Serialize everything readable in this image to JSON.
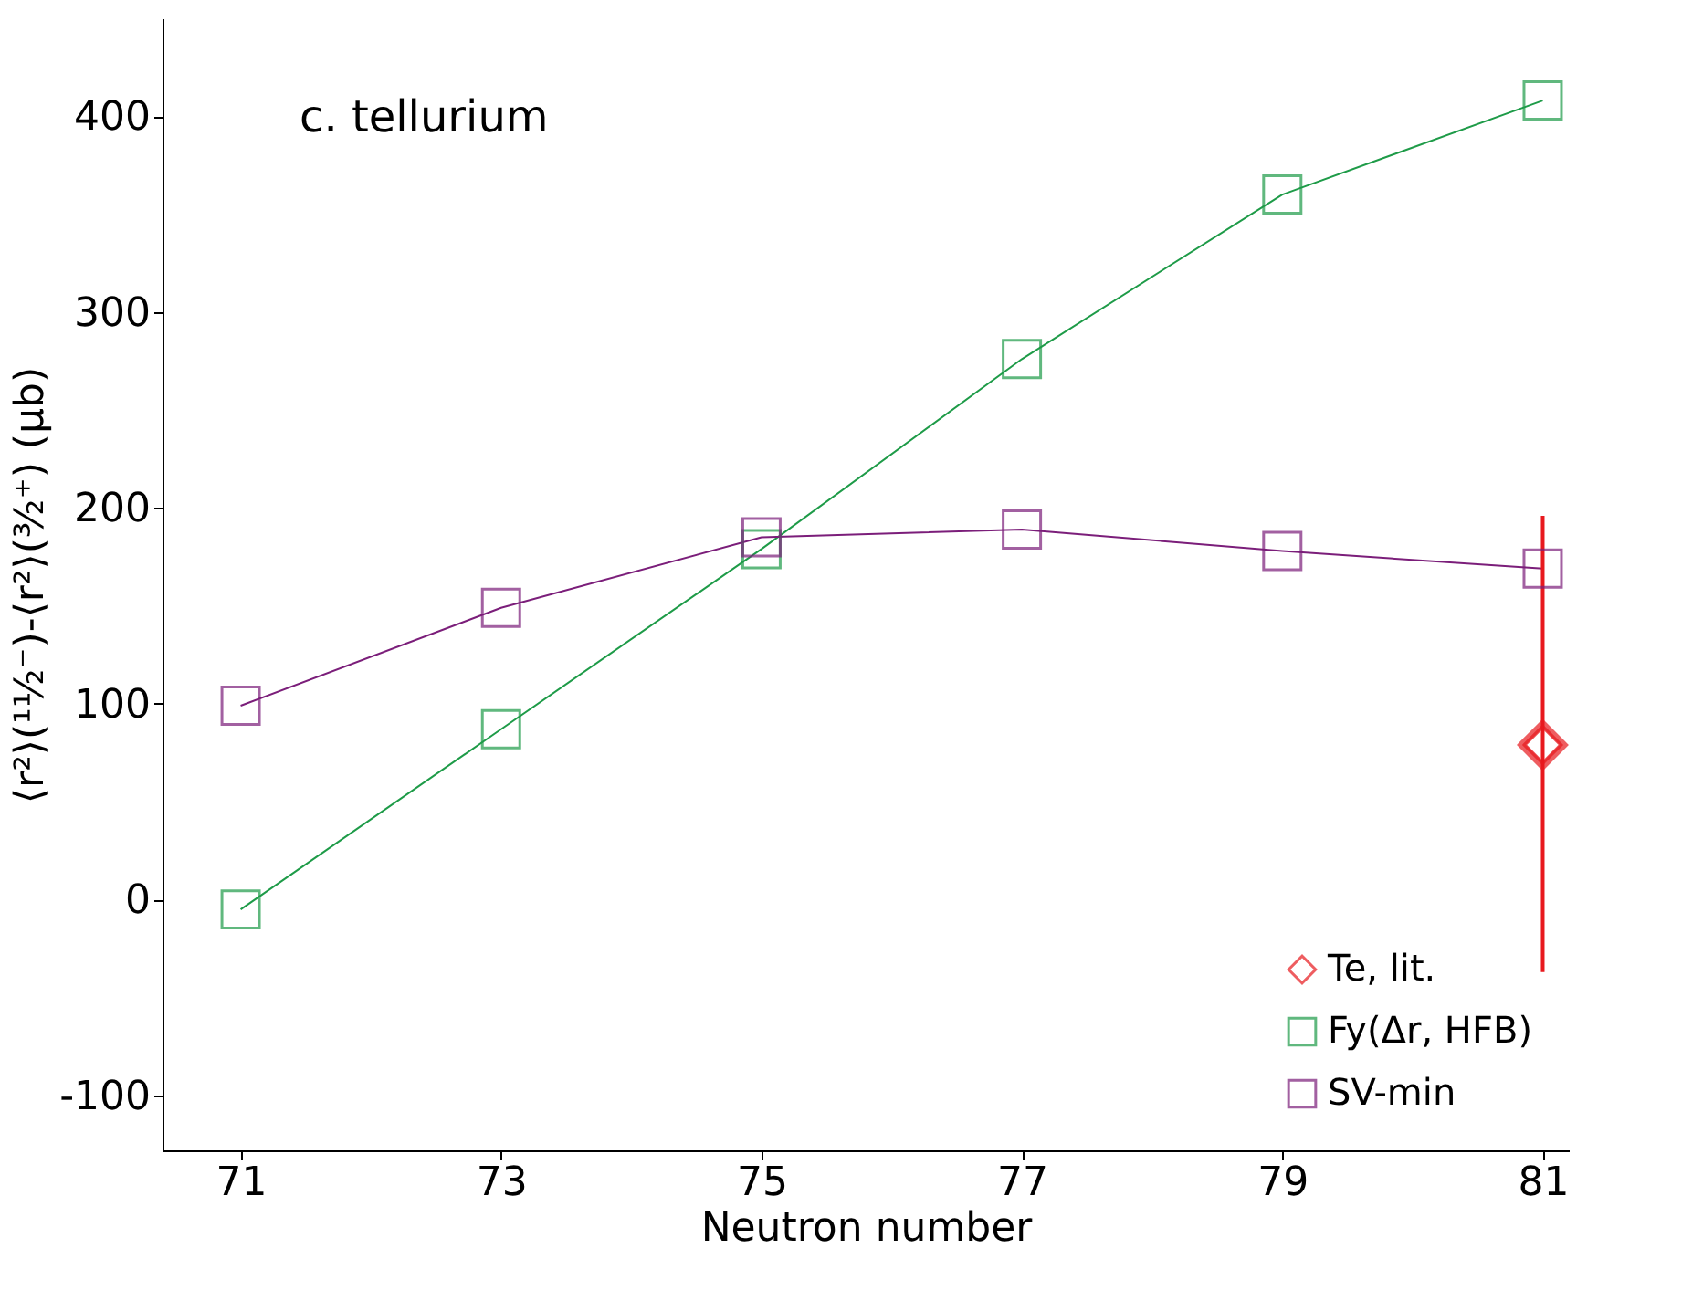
{
  "chart_data": {
    "type": "line",
    "xlabel": "Neutron number",
    "ylabel": "⟨r²⟩(¹¹⁄₂⁻)-⟨r²⟩(³⁄₂⁺) (μb)",
    "annotations": [
      "c. tellurium"
    ],
    "xlim": [
      70.4,
      81.2
    ],
    "xticks": [
      71,
      73,
      75,
      77,
      79,
      81
    ],
    "ylim": [
      -128,
      450
    ],
    "yticks": [
      -100,
      0,
      100,
      200,
      300,
      400
    ],
    "grid": false,
    "legend": "bottom right",
    "line_style": "solid",
    "series": [
      {
        "name": "Te, lit.",
        "type": "scatter",
        "marker": "diamond",
        "color": "#e8191e",
        "x": [
          81
        ],
        "values": [
          79
        ],
        "errors": [
          [
            -37,
            196
          ]
        ]
      },
      {
        "name": "Fy(Δr, HFB)",
        "marker": "square",
        "color": "#1e9b48",
        "x": [
          71,
          73,
          75,
          77,
          79,
          81
        ],
        "values": [
          -5,
          87,
          179,
          276,
          360,
          408
        ]
      },
      {
        "name": "SV-min",
        "marker": "square",
        "color": "#7b1e7a",
        "x": [
          71,
          73,
          75,
          77,
          79,
          81
        ],
        "values": [
          99,
          149,
          185,
          189,
          178,
          169
        ]
      }
    ]
  }
}
